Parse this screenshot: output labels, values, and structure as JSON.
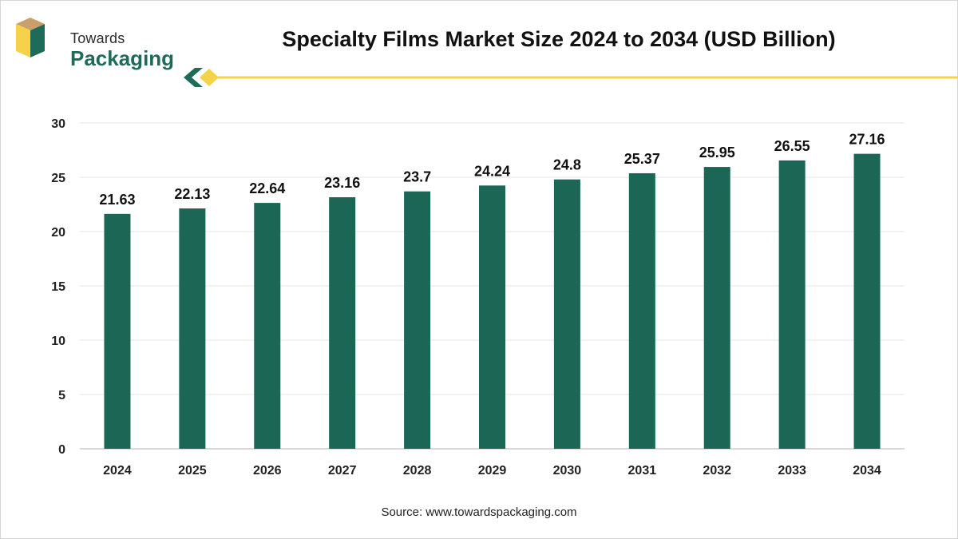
{
  "brand": {
    "line1": "Towards",
    "line2": "Packaging"
  },
  "source": "Source: www.towardspackaging.com",
  "colors": {
    "bar": "#1c6656",
    "accent": "#f5d24a",
    "brand_green": "#1f6b5a",
    "brand_tan": "#b48b5a"
  },
  "chart_data": {
    "type": "bar",
    "title": "Specialty Films Market Size 2024 to 2034 (USD Billion)",
    "xlabel": "",
    "ylabel": "",
    "categories": [
      "2024",
      "2025",
      "2026",
      "2027",
      "2028",
      "2029",
      "2030",
      "2031",
      "2032",
      "2033",
      "2034"
    ],
    "values": [
      21.63,
      22.13,
      22.64,
      23.16,
      23.7,
      24.24,
      24.8,
      25.37,
      25.95,
      26.55,
      27.16
    ],
    "ylim": [
      0,
      30
    ],
    "yticks": [
      0,
      5,
      10,
      15,
      20,
      25,
      30
    ],
    "grid": true,
    "legend": "none",
    "data_labels": true
  }
}
